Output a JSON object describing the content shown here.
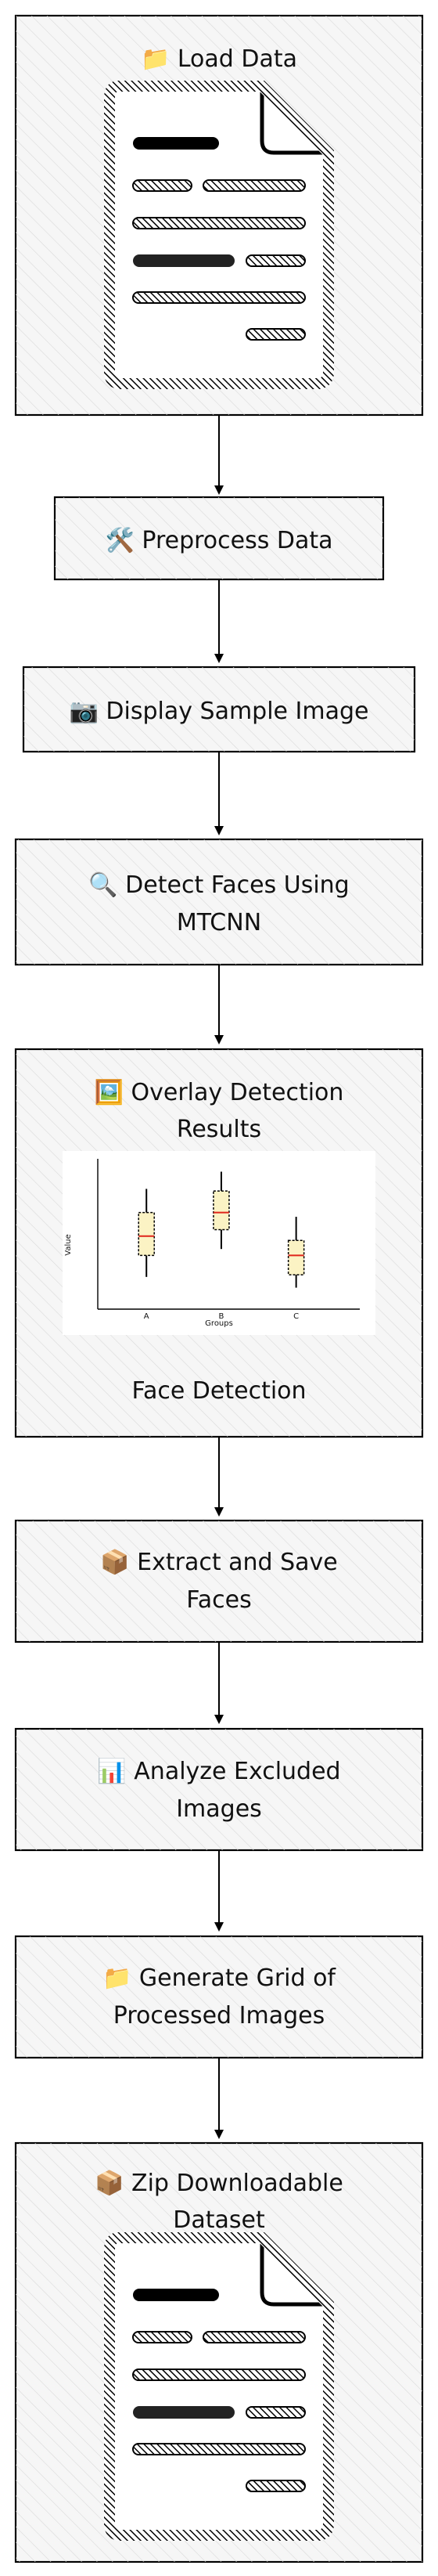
{
  "steps": [
    {
      "icon": "📁",
      "label": "Load Data"
    },
    {
      "icon": "🛠️",
      "label": "Preprocess Data"
    },
    {
      "icon": "📷",
      "label": "Display Sample Image"
    },
    {
      "icon": "🔍",
      "line1": "Detect Faces Using",
      "line2": "MTCNN"
    },
    {
      "icon": "🖼️",
      "line1": "Overlay Detection",
      "line2": "Results",
      "caption": "Face Detection"
    },
    {
      "icon": "📦",
      "line1": "Extract and Save",
      "line2": "Faces"
    },
    {
      "icon": "📊",
      "line1": "Analyze Excluded",
      "line2": "Images"
    },
    {
      "icon": "📁",
      "line1": "Generate Grid of",
      "line2": "Processed Images"
    },
    {
      "icon": "📦",
      "line1": "Zip Downloadable",
      "line2": "Dataset"
    }
  ],
  "chart_data": {
    "type": "box",
    "categories": [
      "A",
      "B",
      "C"
    ],
    "xlabel": "Groups",
    "ylabel": "Value",
    "boxes": [
      {
        "min": 1.5,
        "q1": 2.5,
        "median": 3.4,
        "q3": 4.5,
        "max": 5.6
      },
      {
        "min": 2.8,
        "q1": 3.7,
        "median": 4.5,
        "q3": 5.5,
        "max": 6.4
      },
      {
        "min": 1.0,
        "q1": 1.6,
        "median": 2.5,
        "q3": 3.2,
        "max": 4.3
      }
    ],
    "ylim": [
      0,
      7
    ]
  }
}
